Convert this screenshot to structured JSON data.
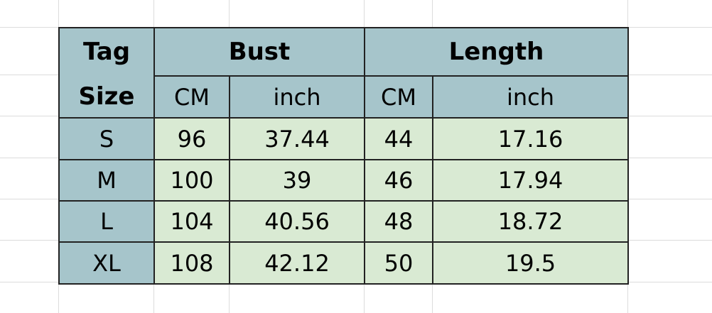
{
  "header": {
    "tag_size": [
      "Tag",
      "Size"
    ],
    "groups": [
      "Bust",
      "Length"
    ],
    "subcolumns": [
      "CM",
      "inch",
      "CM",
      "inch"
    ]
  },
  "rows": [
    {
      "size": "S",
      "bust_cm": "96",
      "bust_inch": "37.44",
      "length_cm": "44",
      "length_inch": "17.16"
    },
    {
      "size": "M",
      "bust_cm": "100",
      "bust_inch": "39",
      "length_cm": "46",
      "length_inch": "17.94"
    },
    {
      "size": "L",
      "bust_cm": "104",
      "bust_inch": "40.56",
      "length_cm": "48",
      "length_inch": "18.72"
    },
    {
      "size": "XL",
      "bust_cm": "108",
      "bust_inch": "42.12",
      "length_cm": "50",
      "length_inch": "19.5"
    }
  ],
  "colors": {
    "header_fill": "#a6c5cb",
    "body_fill": "#d9ead3",
    "border": "#222222"
  }
}
